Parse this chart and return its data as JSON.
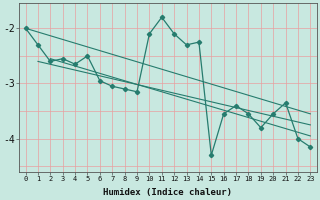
{
  "xlabel": "Humidex (Indice chaleur)",
  "x_data": [
    0,
    1,
    2,
    3,
    4,
    5,
    6,
    7,
    8,
    9,
    10,
    11,
    12,
    13,
    14,
    15,
    16,
    17,
    18,
    19,
    20,
    21,
    22,
    23
  ],
  "y_main": [
    -2.0,
    -2.3,
    -2.6,
    -2.55,
    -2.65,
    -2.5,
    -2.95,
    -3.05,
    -3.1,
    -3.15,
    -2.1,
    -1.8,
    -2.1,
    -2.3,
    -2.25,
    -4.3,
    -3.55,
    -3.4,
    -3.55,
    -3.8,
    -3.55,
    -3.35,
    -4.0,
    -4.15
  ],
  "line_color": "#267c6e",
  "bg_color": "#c8e8e0",
  "grid_color": "#e8a0a0",
  "ylim": [
    -4.6,
    -1.55
  ],
  "xlim": [
    -0.5,
    23.5
  ],
  "yticks": [
    -4,
    -3,
    -2
  ],
  "trend1_x": [
    0,
    23
  ],
  "trend1_y": [
    -2.0,
    -3.55
  ],
  "trend2_x": [
    1,
    23
  ],
  "trend2_y": [
    -2.6,
    -3.75
  ],
  "trend3_x": [
    2,
    23
  ],
  "trend3_y": [
    -2.55,
    -3.95
  ]
}
